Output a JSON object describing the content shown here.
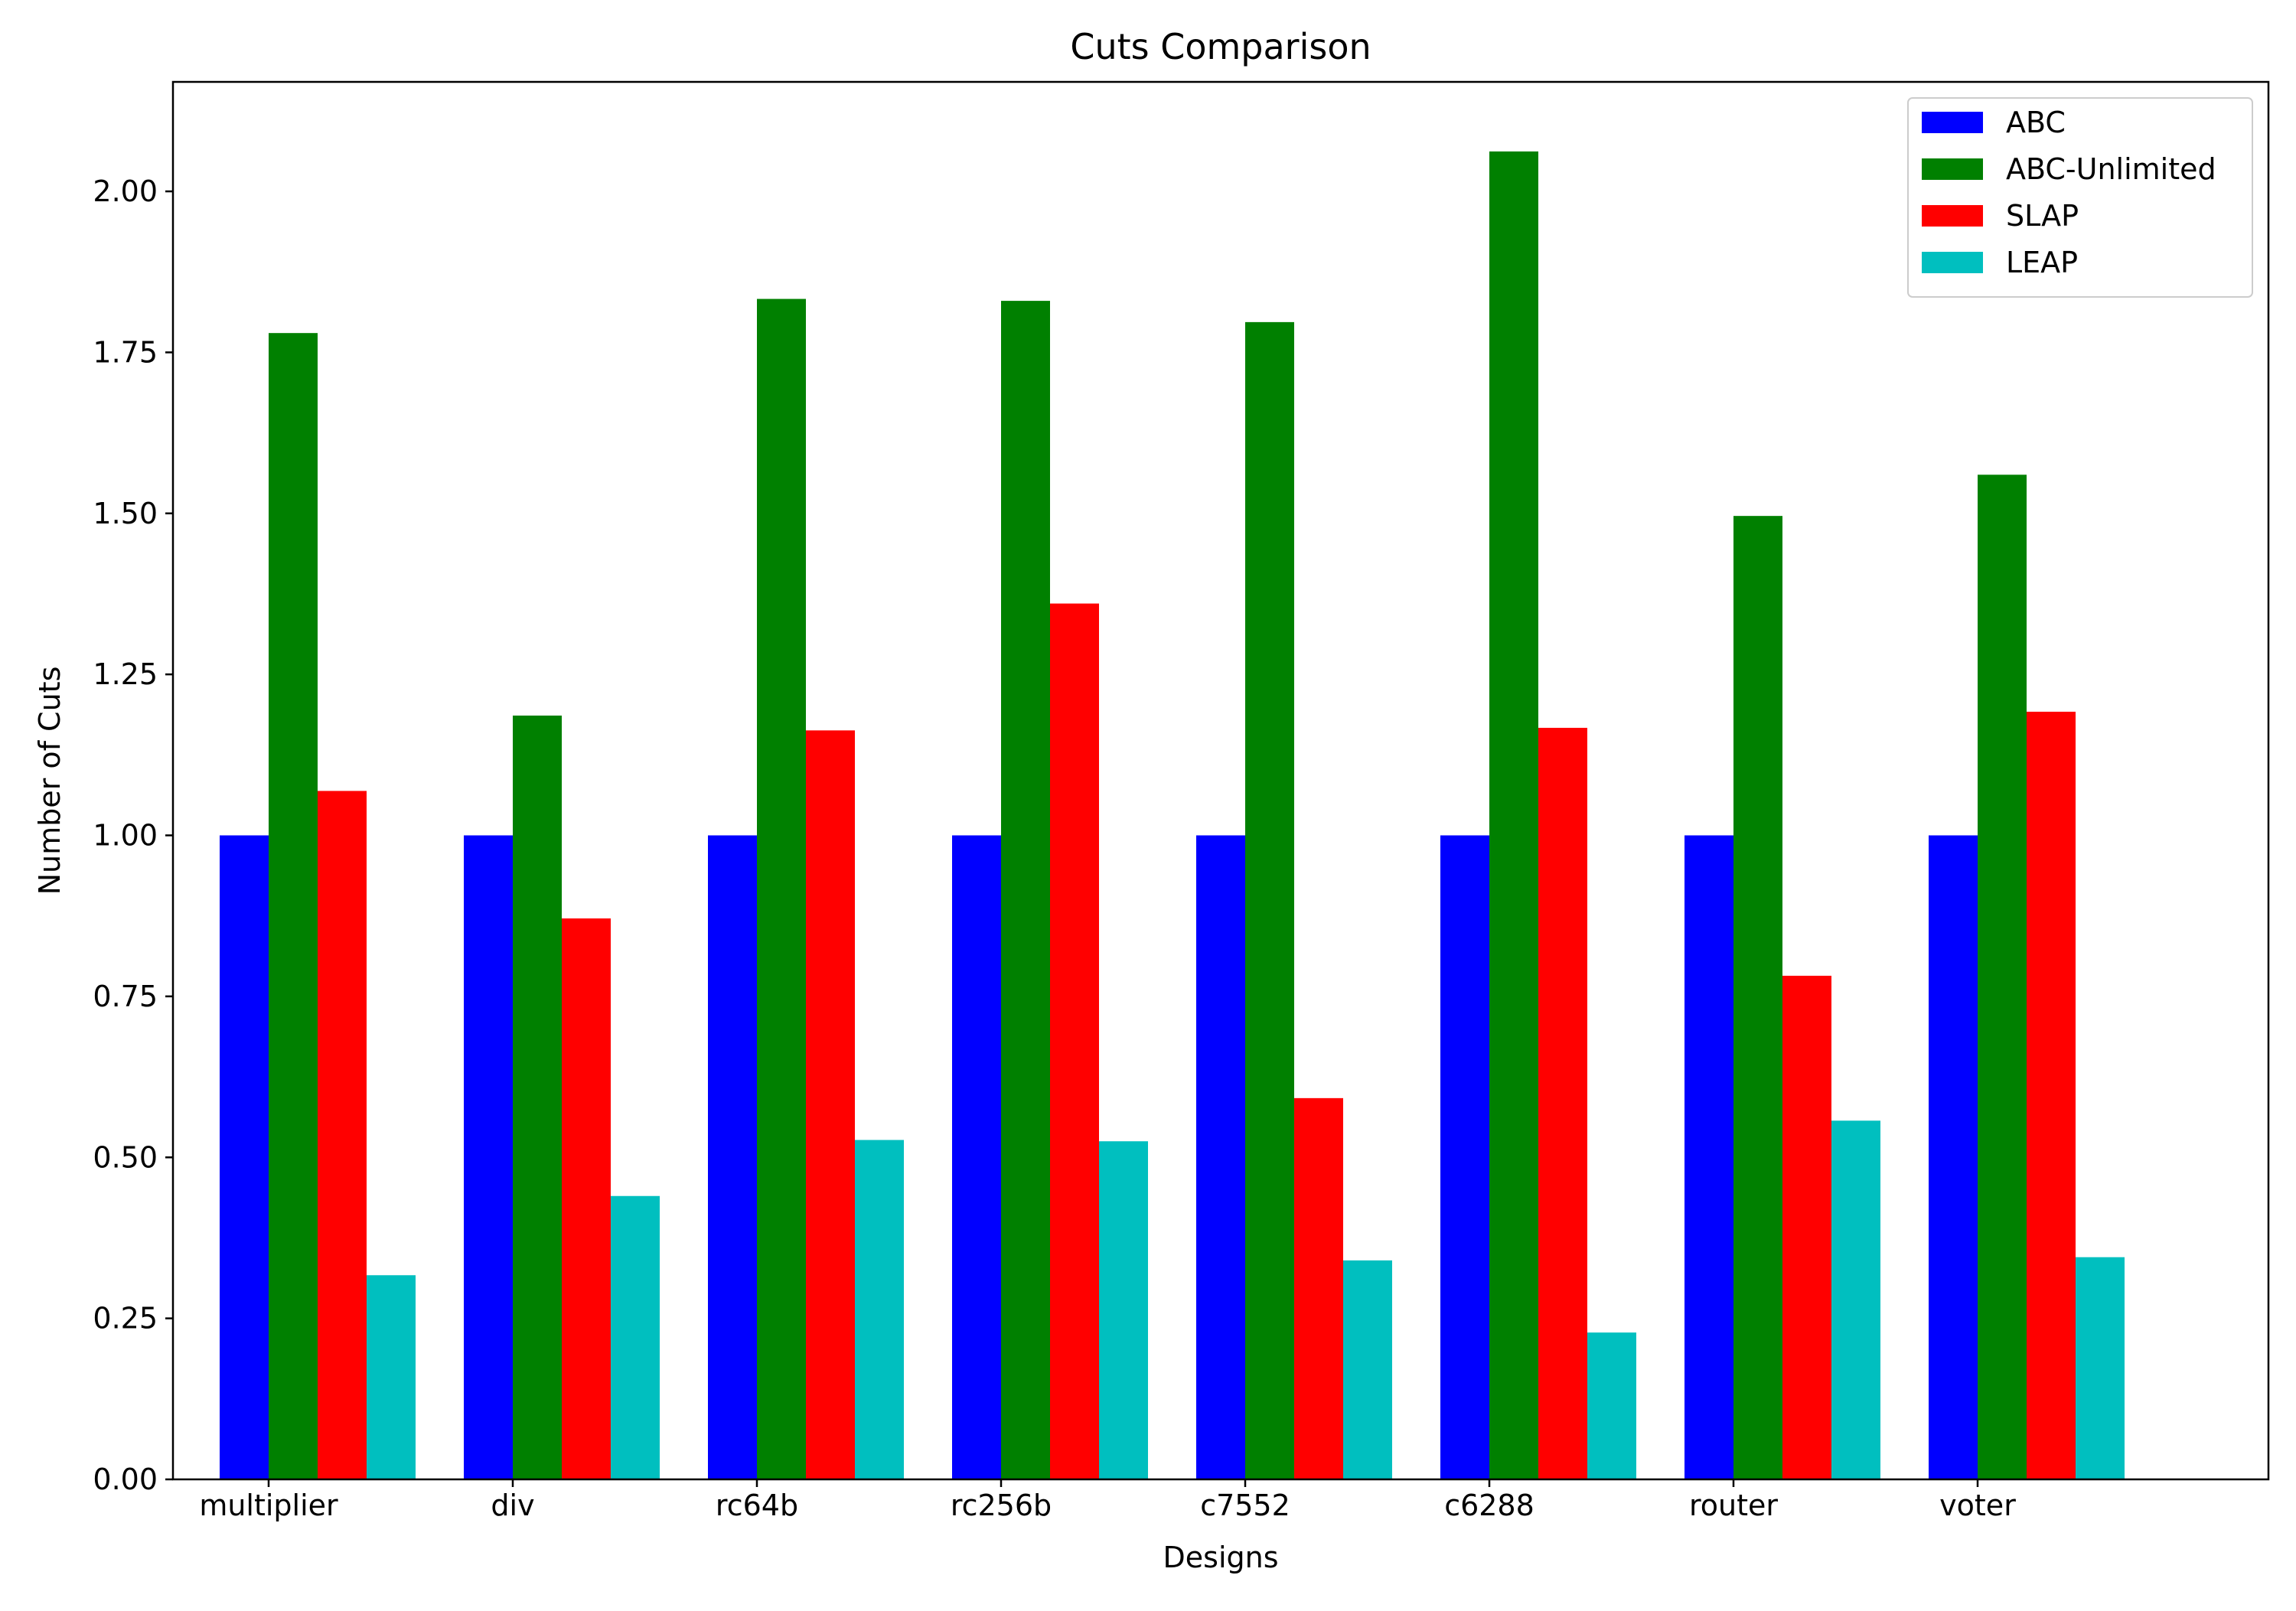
{
  "chart_data": {
    "type": "bar",
    "title": "Cuts Comparison",
    "xlabel": "Designs",
    "ylabel": "Number of Cuts",
    "categories": [
      "multiplier",
      "div",
      "rc64b",
      "rc256b",
      "c7552",
      "c6288",
      "router",
      "voter"
    ],
    "series": [
      {
        "name": "ABC",
        "color": "#0000ff",
        "values": [
          1.0,
          1.0,
          1.0,
          1.0,
          1.0,
          1.0,
          1.0,
          1.0
        ]
      },
      {
        "name": "ABC-Unlimited",
        "color": "#008000",
        "values": [
          1.78,
          1.186,
          1.833,
          1.83,
          1.797,
          2.062,
          1.496,
          1.56
        ]
      },
      {
        "name": "SLAP",
        "color": "#ff0000",
        "values": [
          1.069,
          0.871,
          1.163,
          1.36,
          0.592,
          1.167,
          0.782,
          1.192
        ]
      },
      {
        "name": "LEAP",
        "color": "#00bfbf",
        "values": [
          0.317,
          0.44,
          0.527,
          0.525,
          0.34,
          0.228,
          0.557,
          0.345
        ]
      }
    ],
    "ylim": [
      0,
      2.17
    ],
    "yticks": [
      "0.00",
      "0.25",
      "0.50",
      "0.75",
      "1.00",
      "1.25",
      "1.50",
      "1.75",
      "2.00"
    ],
    "grid": false,
    "legend_position": "top-right"
  }
}
